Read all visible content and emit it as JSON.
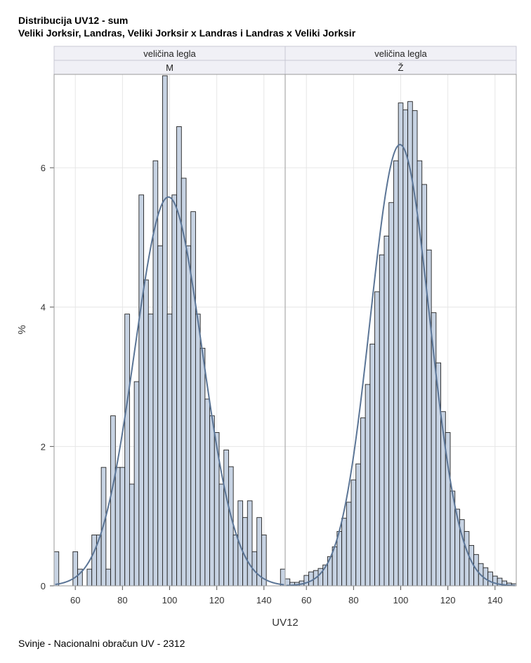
{
  "title": "Distribucija UV12 - sum",
  "subtitle": "Veliki Jorksir, Landras, Veliki Jorksir x Landras i Landras x Veliki Jorksir",
  "footer": "Svinje - Nacionalni obračun UV - 2312",
  "colors": {
    "bar_fill": "#c7d3e3",
    "bar_stroke": "#222222",
    "curve": "#5b7596",
    "strip_fill": "#f0f0f6",
    "frame": "#9a9a9a"
  },
  "chart_data": {
    "type": "bar",
    "xlabel": "UV12",
    "ylabel": "%",
    "xlim": [
      51,
      149
    ],
    "ylim": [
      0,
      7.35
    ],
    "xticks": [
      60,
      80,
      100,
      120,
      140
    ],
    "yticks": [
      0,
      2,
      4,
      6
    ],
    "grid": true,
    "bin_width": 2,
    "panels": [
      {
        "strip_title": "veličina legla",
        "strip_value": "M",
        "bin_start": 52,
        "values": [
          0.49,
          0,
          0,
          0,
          0.49,
          0.24,
          0,
          0.24,
          0.73,
          0.73,
          1.7,
          0.24,
          2.44,
          1.7,
          1.7,
          3.9,
          1.46,
          2.93,
          5.61,
          4.39,
          3.9,
          6.1,
          4.88,
          7.32,
          3.9,
          5.61,
          6.59,
          5.85,
          4.88,
          5.37,
          3.9,
          3.41,
          2.68,
          2.44,
          2.2,
          1.46,
          1.95,
          1.71,
          0.73,
          1.22,
          0.98,
          1.22,
          0.49,
          0.98,
          0.73,
          0,
          0,
          0,
          0.24
        ],
        "normal_curve": {
          "mean": 99.5,
          "sd": 14.3
        }
      },
      {
        "strip_title": "veličina legla",
        "strip_value": "Ž",
        "bin_start": 52,
        "values": [
          0.1,
          0.05,
          0.05,
          0.07,
          0.15,
          0.2,
          0.22,
          0.25,
          0.3,
          0.42,
          0.56,
          0.78,
          0.97,
          1.2,
          1.52,
          1.75,
          2.41,
          2.89,
          3.47,
          4.22,
          4.75,
          5.02,
          5.5,
          6.1,
          6.93,
          6.83,
          6.95,
          6.82,
          6.1,
          5.76,
          4.82,
          3.92,
          3.2,
          2.5,
          2.2,
          1.36,
          1.1,
          0.95,
          0.78,
          0.58,
          0.45,
          0.32,
          0.26,
          0.2,
          0.14,
          0.11,
          0.07,
          0.04,
          0.03
        ],
        "normal_curve": {
          "mean": 99.7,
          "sd": 12.6
        }
      }
    ]
  }
}
